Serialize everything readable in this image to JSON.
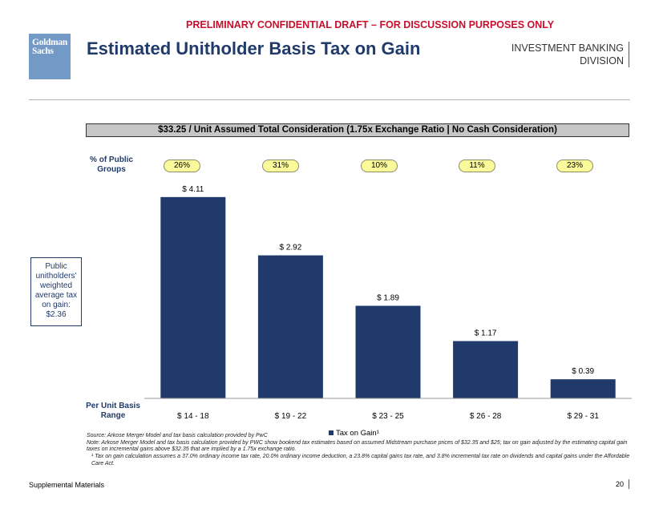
{
  "header": {
    "banner": "PRELIMINARY CONFIDENTIAL DRAFT – FOR DISCUSSION PURPOSES ONLY",
    "logo_line1": "Goldman",
    "logo_line2": "Sachs",
    "title": "Estimated Unitholder Basis Tax on Gain",
    "division_line1": "INVESTMENT BANKING",
    "division_line2": "DIVISION"
  },
  "consideration_box": "$33.25 / Unit Assumed Total Consideration (1.75x Exchange Ratio | No Cash Consideration)",
  "pct_public_label": "% of Public Groups",
  "pct_public": [
    "26%",
    "31%",
    "10%",
    "11%",
    "23%"
  ],
  "weighted_avg_box": "Public unitholders' weighted average tax on gain: $2.36",
  "basis_range_label": "Per Unit Basis Range",
  "chart_data": {
    "type": "bar",
    "title": "Estimated Unitholder Basis Tax on Gain",
    "xlabel": "Per Unit Basis Range",
    "ylabel": "",
    "categories": [
      "$ 14 - 18",
      "$ 19 - 22",
      "$ 23 - 25",
      "$ 26 - 28",
      "$ 29 - 31"
    ],
    "series": [
      {
        "name": "Tax on Gain¹",
        "values": [
          4.11,
          2.92,
          1.89,
          1.17,
          0.39
        ]
      }
    ],
    "data_labels": [
      "$ 4.11",
      "$ 2.92",
      "$ 1.89",
      "$ 1.17",
      "$ 0.39"
    ],
    "ylim": [
      0,
      4.5
    ],
    "legend": "bottom-center",
    "grid": false,
    "colors": {
      "bar": "#1f3a6b"
    }
  },
  "notes": {
    "source": "Source: Arkose Merger Model and tax basis calculation provided by PwC",
    "note": "Note: Arkose Merger Model and tax basis calculation provided by PWC show bookend tax estimates based on assumed Midstream purchase prices of $32.35 and $25; tax on gain adjusted by the estimating capital gain taxes on incremental gains above $32.35 that are implied by a 1.75x exchange ratio.",
    "footnote": "¹ Tax on gain calculation assumes a 37.0% ordinary income tax rate, 20.0% ordinary income deduction, a 23.8% capital gains tax rate, and 3.8% incremental tax rate on dividends and capital gains under the Affordable Care Act."
  },
  "footer": {
    "section": "Supplemental Materials",
    "page": "20"
  },
  "colors": {
    "banner": "#c8102e",
    "title": "#1f3a6b",
    "logo_bg": "#7399c6",
    "pill_bg": "#fafa9b"
  }
}
